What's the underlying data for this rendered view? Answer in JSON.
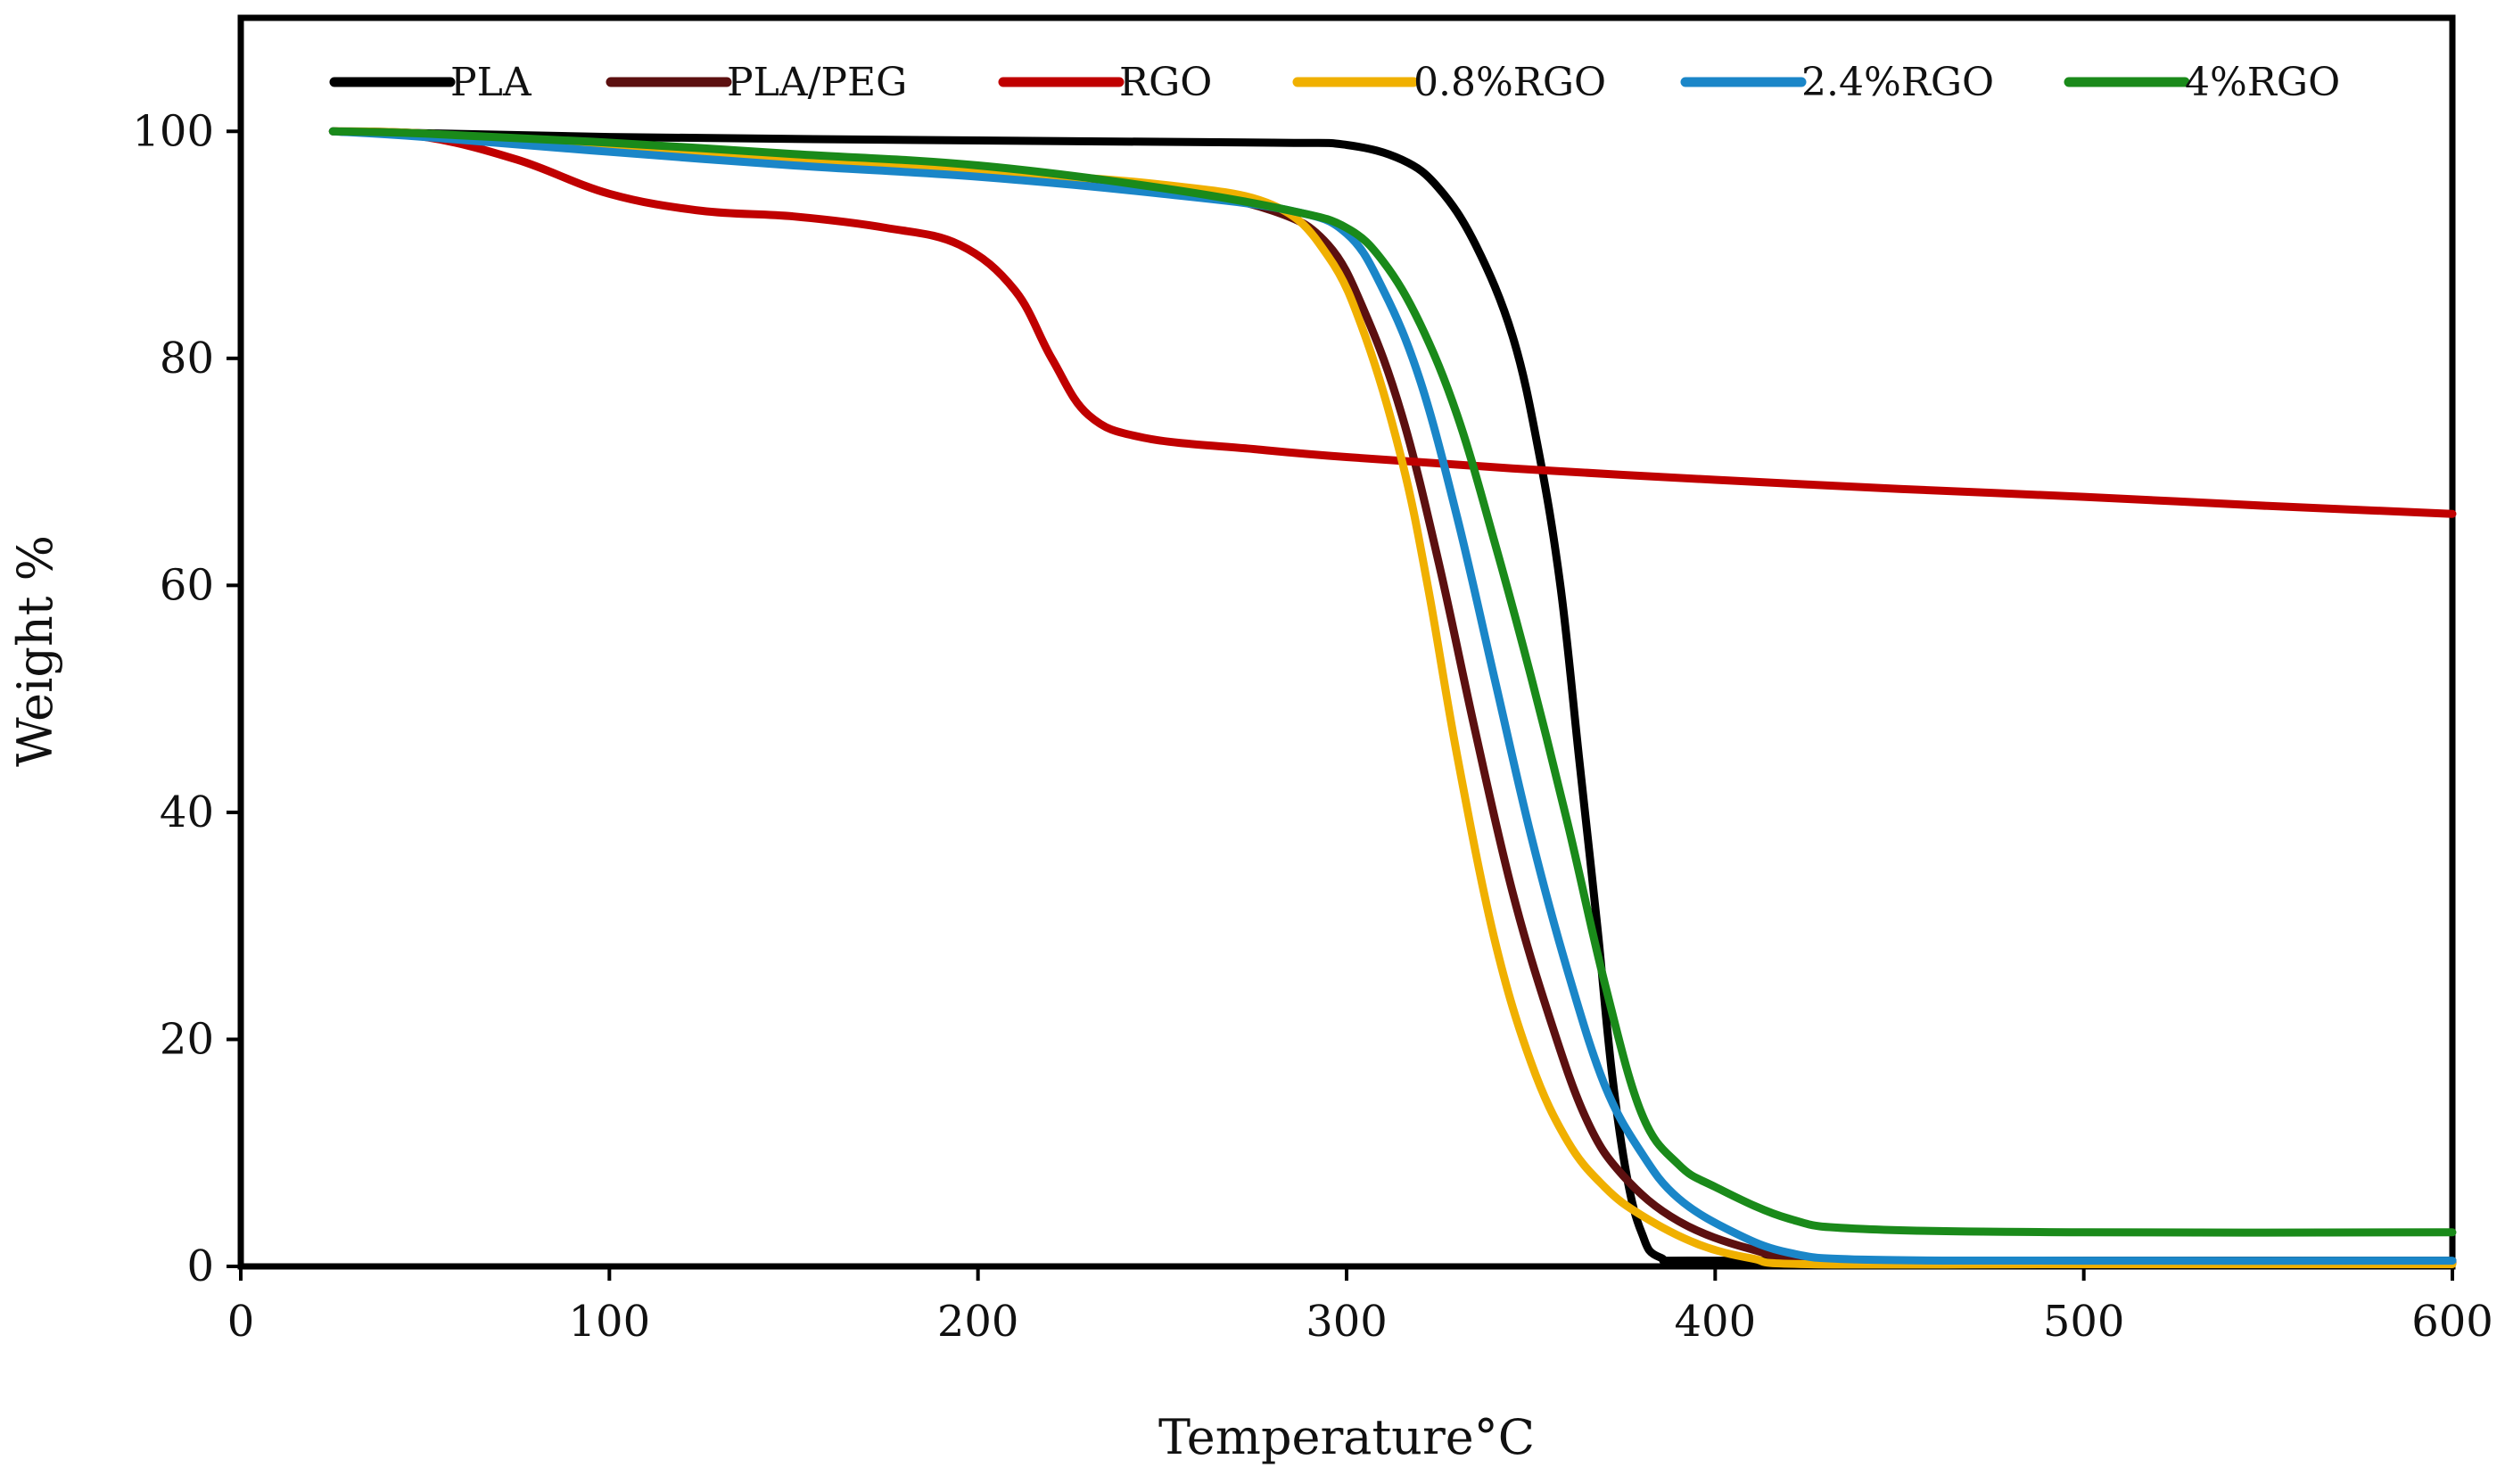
{
  "chart_data": {
    "type": "line",
    "title": "",
    "xlabel": "Temperature°C",
    "ylabel": "Weight %",
    "xlim": [
      0,
      600
    ],
    "ylim": [
      0,
      110
    ],
    "x_ticks": [
      "0",
      "100",
      "200",
      "300",
      "400",
      "500",
      "600"
    ],
    "y_ticks": [
      "0",
      "20",
      "40",
      "60",
      "80",
      "100"
    ],
    "grid": false,
    "legend_position": "top",
    "series": [
      {
        "name": "PLA",
        "color": "#000000",
        "x": [
          25,
          100,
          200,
          280,
          300,
          315,
          325,
          335,
          345,
          352,
          358,
          363,
          368,
          372,
          376,
          380,
          385,
          400,
          500,
          600
        ],
        "y": [
          100,
          99.5,
          99.2,
          99.0,
          98.8,
          97.5,
          95,
          90,
          82,
          72,
          60,
          45,
          30,
          17,
          8,
          3,
          0.8,
          0.5,
          0.5,
          0.5
        ]
      },
      {
        "name": "PLA/PEG",
        "color": "#5c1010",
        "x": [
          25,
          50,
          100,
          150,
          200,
          250,
          280,
          295,
          305,
          315,
          325,
          335,
          345,
          355,
          365,
          375,
          390,
          410,
          430,
          500,
          600
        ],
        "y": [
          100,
          99.8,
          98.5,
          97.5,
          96.5,
          95,
          93,
          90,
          84,
          75,
          62,
          47,
          33,
          22,
          13,
          8,
          4,
          1.5,
          0.5,
          0.3,
          0.3
        ]
      },
      {
        "name": "RGO",
        "color": "#c00000",
        "x": [
          25,
          50,
          75,
          100,
          125,
          150,
          175,
          195,
          210,
          220,
          230,
          245,
          275,
          300,
          350,
          400,
          450,
          500,
          550,
          600
        ],
        "y": [
          100,
          99.5,
          97.5,
          94.5,
          93,
          92.5,
          91.5,
          90,
          86,
          80,
          75,
          73,
          72,
          71.3,
          70.2,
          69.3,
          68.5,
          67.8,
          67,
          66.3
        ]
      },
      {
        "name": "0.8%RGO",
        "color": "#f0b000",
        "x": [
          25,
          50,
          100,
          150,
          200,
          250,
          280,
          295,
          305,
          315,
          322,
          330,
          340,
          350,
          360,
          370,
          380,
          395,
          410,
          425,
          500,
          600
        ],
        "y": [
          100,
          99.8,
          98.5,
          97.5,
          96.5,
          95.3,
          93.5,
          89,
          82,
          71,
          60,
          45,
          29,
          18,
          11,
          7,
          4.5,
          2,
          0.7,
          0.2,
          0.2,
          0.2
        ]
      },
      {
        "name": "2.4%RGO",
        "color": "#1a86c8",
        "x": [
          25,
          50,
          100,
          150,
          200,
          250,
          285,
          300,
          310,
          320,
          330,
          340,
          350,
          360,
          370,
          380,
          390,
          405,
          420,
          440,
          500,
          600
        ],
        "y": [
          100,
          99.5,
          98.2,
          97,
          96,
          94.5,
          93,
          91,
          86,
          78,
          66,
          52,
          38,
          26,
          16,
          10,
          6,
          3,
          1.2,
          0.6,
          0.5,
          0.5
        ]
      },
      {
        "name": "4%RGO",
        "color": "#1a8a1a",
        "x": [
          25,
          50,
          100,
          150,
          200,
          250,
          285,
          300,
          310,
          320,
          330,
          340,
          350,
          360,
          370,
          380,
          390,
          400,
          420,
          440,
          500,
          600
        ],
        "y": [
          100,
          99.8,
          99,
          98,
          97,
          95,
          93,
          91.5,
          88.5,
          83,
          75,
          64,
          52,
          39,
          25,
          13.5,
          9,
          7,
          4.2,
          3.3,
          3,
          3
        ]
      }
    ]
  }
}
